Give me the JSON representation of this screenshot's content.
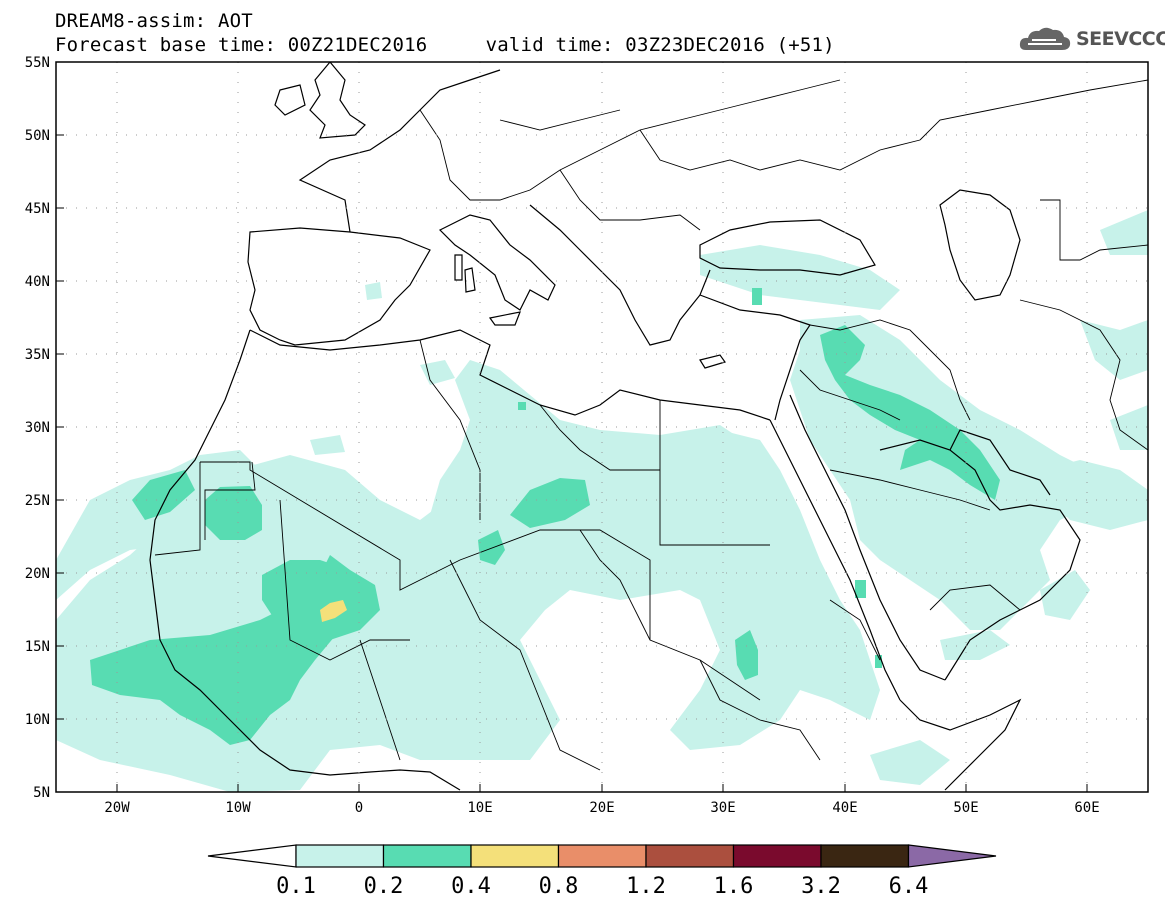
{
  "header": {
    "line1": "DREAM8-assim: AOT",
    "line2": "Forecast base time: 00Z21DEC2016     valid time: 03Z23DEC2016 (+51)"
  },
  "logo": {
    "text": "SEEVCCC",
    "icon": "cloud-icon"
  },
  "map": {
    "lon_range": [
      -25,
      65
    ],
    "lat_range": [
      5,
      55
    ],
    "lat_ticks": [
      "55N",
      "50N",
      "45N",
      "40N",
      "35N",
      "30N",
      "25N",
      "20N",
      "15N",
      "10N",
      "5N"
    ],
    "lon_ticks": [
      "20W",
      "10W",
      "0",
      "10E",
      "20E",
      "30E",
      "40E",
      "50E",
      "60E"
    ],
    "gridlines": "dotted"
  },
  "colorbar": {
    "labels": [
      "0.1",
      "0.2",
      "0.4",
      "0.8",
      "1.2",
      "1.6",
      "3.2",
      "6.4"
    ],
    "colors": [
      "#c7f2ea",
      "#58dcb2",
      "#f4e07a",
      "#e98e69",
      "#ab4f3e",
      "#7a0a2d",
      "#3a2612",
      "#8b69a6"
    ]
  }
}
